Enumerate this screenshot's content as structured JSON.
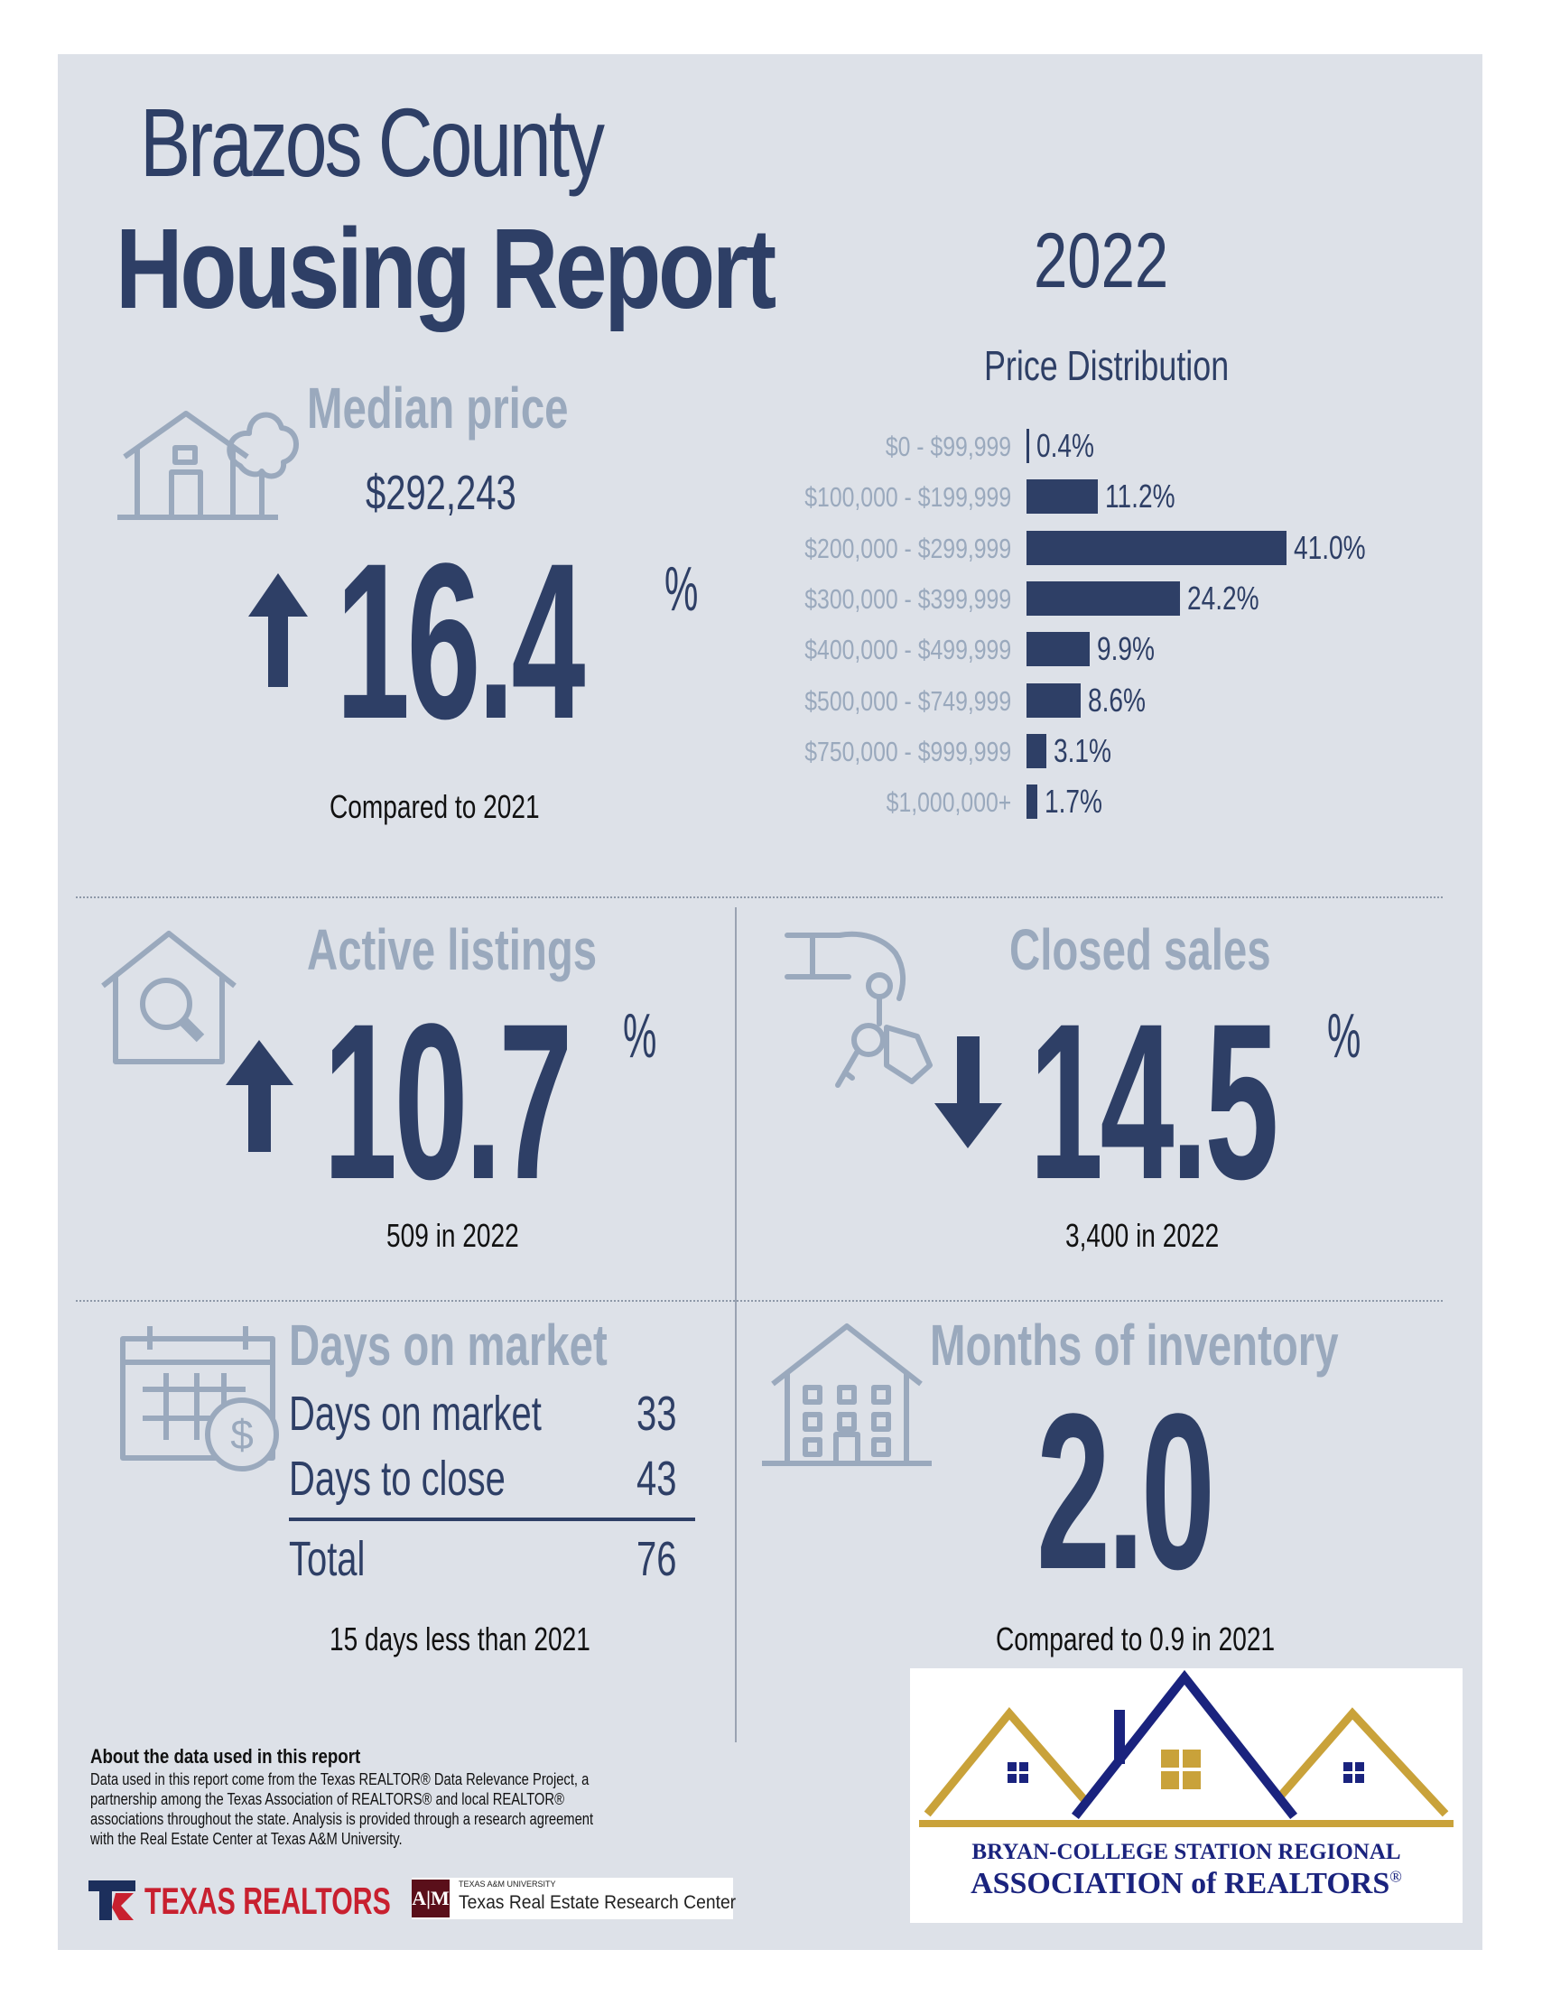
{
  "header": {
    "title_line1": "Brazos County",
    "title_line2": "Housing Report",
    "year": "2022"
  },
  "median_price": {
    "heading": "Median price",
    "value": "$292,243",
    "change": "16.4",
    "unit": "%",
    "direction": "up",
    "comparison": "Compared to 2021"
  },
  "price_distribution": {
    "title": "Price Distribution",
    "chart_data": {
      "type": "bar",
      "orientation": "horizontal",
      "title": "Price Distribution",
      "categories": [
        "$0 - $99,999",
        "$100,000 - $199,999",
        "$200,000 - $299,999",
        "$300,000 - $399,999",
        "$400,000 - $499,999",
        "$500,000 - $749,999",
        "$750,000 - $999,999",
        "$1,000,000+"
      ],
      "values": [
        0.4,
        11.2,
        41.0,
        24.2,
        9.9,
        8.6,
        3.1,
        1.7
      ],
      "value_labels": [
        "0.4%",
        "11.2%",
        "41.0%",
        "24.2%",
        "9.9%",
        "8.6%",
        "3.1%",
        "1.7%"
      ],
      "color": "#2e3f66"
    }
  },
  "active_listings": {
    "heading": "Active listings",
    "change": "10.7",
    "unit": "%",
    "direction": "up",
    "note": "509 in 2022"
  },
  "closed_sales": {
    "heading": "Closed sales",
    "change": "14.5",
    "unit": "%",
    "direction": "down",
    "note": "3,400 in 2022"
  },
  "days_on_market": {
    "heading": "Days on market",
    "rows": [
      {
        "label": "Days on market",
        "value": "33"
      },
      {
        "label": "Days to close",
        "value": "43"
      }
    ],
    "total_label": "Total",
    "total_value": "76",
    "note": "15 days less than 2021"
  },
  "months_inventory": {
    "heading": "Months of inventory",
    "value": "2.0",
    "note": "Compared to 0.9 in 2021"
  },
  "about": {
    "heading": "About the data used in this report",
    "lines": [
      "Data used in this report come from the Texas REALTOR® Data Relevance Project, a",
      "partnership among the Texas Association of REALTORS® and local REALTOR®",
      "associations throughout the state. Analysis is provided through a research agreement",
      "with the Real Estate Center at Texas A&M University."
    ]
  },
  "logos": {
    "texas_realtors": "TEXAS REALTORS",
    "tamu_small": "TEXAS A&M UNIVERSITY",
    "tamu_center": "Texas Real Estate Research Center",
    "bcs_line1": "BRYAN-COLLEGE STATION REGIONAL",
    "bcs_line2": "ASSOCIATION of REALTORS",
    "registered": "®"
  },
  "colors": {
    "navy": "#2e3f66",
    "muted": "#9aa9bd",
    "background": "#dde1e8",
    "gold": "#c9a23a"
  }
}
